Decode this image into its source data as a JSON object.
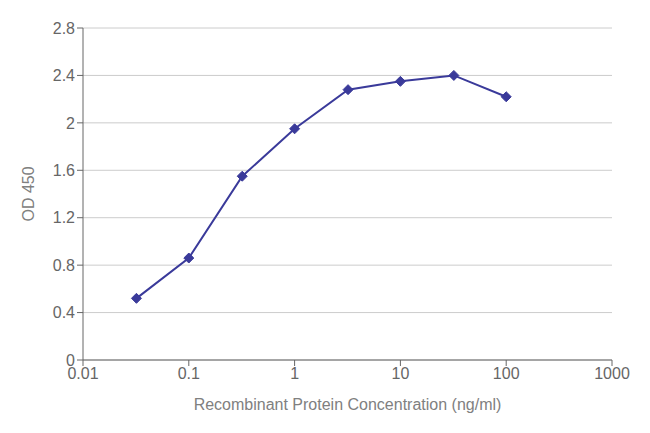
{
  "chart_data": {
    "type": "line",
    "x": [
      0.032,
      0.1,
      0.32,
      1,
      3.2,
      10,
      32,
      100
    ],
    "values": [
      0.52,
      0.86,
      1.55,
      1.95,
      2.28,
      2.35,
      2.4,
      2.22
    ],
    "color": "#3a3a9a",
    "marker": "diamond",
    "xlabel": "Recombinant Protein Concentration (ng/ml)",
    "ylabel": "OD 450",
    "log": "x",
    "xlim": [
      0.01,
      1000
    ],
    "ylim": [
      0,
      2.8
    ],
    "xticks": [
      0.01,
      0.1,
      1,
      10,
      100,
      1000
    ],
    "yticks": [
      0,
      0.4,
      0.8,
      1.2,
      1.6,
      2,
      2.4,
      2.8
    ],
    "grid": "y"
  }
}
